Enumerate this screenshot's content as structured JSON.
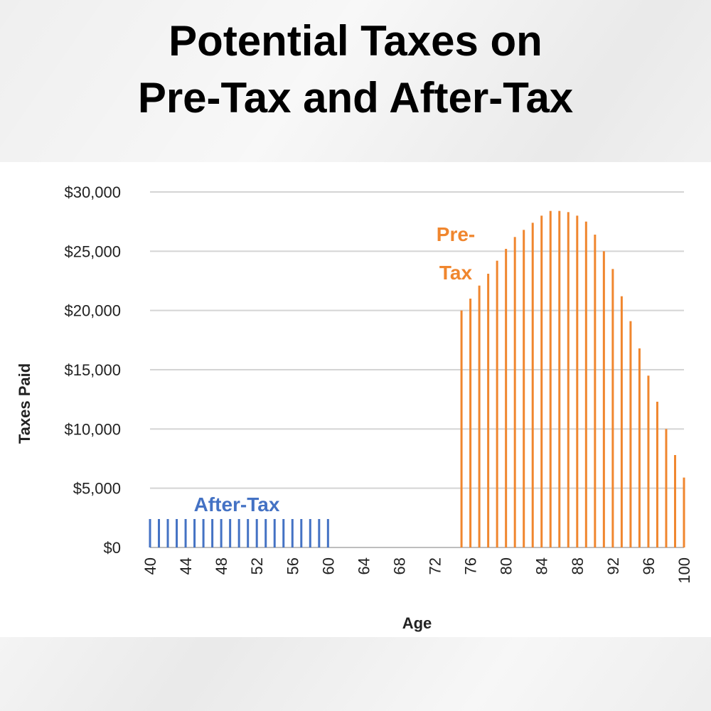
{
  "title": {
    "line1": "Potential Taxes on",
    "line2": "Pre-Tax and After-Tax"
  },
  "colors": {
    "pre_tax": "#f0862e",
    "after_tax": "#4472c4",
    "grid": "#d4d4d4"
  },
  "chart_data": {
    "type": "bar",
    "xlabel": "Age",
    "ylabel": "Taxes Paid",
    "ylim": [
      0,
      30000
    ],
    "xlim": [
      40,
      100
    ],
    "grid": true,
    "y_ticks": [
      "$0",
      "$5,000",
      "$10,000",
      "$15,000",
      "$20,000",
      "$25,000",
      "$30,000"
    ],
    "x_ticks": [
      "40",
      "44",
      "48",
      "52",
      "56",
      "60",
      "64",
      "68",
      "72",
      "76",
      "80",
      "84",
      "88",
      "92",
      "96",
      "100"
    ],
    "series": [
      {
        "name": "After-Tax",
        "x": [
          40,
          41,
          42,
          43,
          44,
          45,
          46,
          47,
          48,
          49,
          50,
          51,
          52,
          53,
          54,
          55,
          56,
          57,
          58,
          59,
          60
        ],
        "values": [
          2400,
          2400,
          2400,
          2400,
          2400,
          2400,
          2400,
          2400,
          2400,
          2400,
          2400,
          2400,
          2400,
          2400,
          2400,
          2400,
          2400,
          2400,
          2400,
          2400,
          2400
        ]
      },
      {
        "name": "Pre-Tax",
        "name_lines": [
          "Pre-",
          "Tax"
        ],
        "x": [
          75,
          76,
          77,
          78,
          79,
          80,
          81,
          82,
          83,
          84,
          85,
          86,
          87,
          88,
          89,
          90,
          91,
          92,
          93,
          94,
          95,
          96,
          97,
          98,
          99,
          100
        ],
        "values": [
          20000,
          21000,
          22100,
          23100,
          24200,
          25200,
          26200,
          26800,
          27400,
          28000,
          28400,
          28400,
          28300,
          28000,
          27500,
          26400,
          25000,
          23500,
          21200,
          19100,
          16800,
          14500,
          12300,
          10000,
          7800,
          5900
        ]
      }
    ]
  }
}
